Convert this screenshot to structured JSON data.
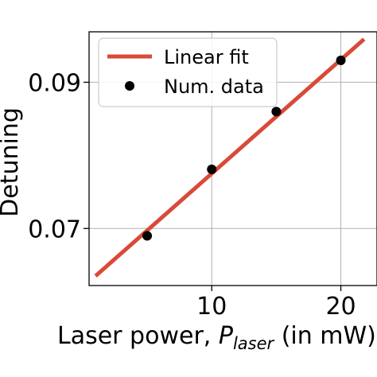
{
  "chart_data": {
    "type": "scatter",
    "xlabel_main": "Laser power, ",
    "xlabel_symbol": "P",
    "xlabel_subscript": "laser",
    "xlabel_suffix": " (in mW)",
    "ylabel": "Detuning",
    "xlim": [
      0.5,
      22.8
    ],
    "ylim": [
      0.0622,
      0.0969
    ],
    "x_ticks": [
      10,
      20
    ],
    "x_tick_labels": [
      "10",
      "20"
    ],
    "y_ticks": [
      0.07,
      0.09
    ],
    "y_tick_labels": [
      "0.07",
      "0.09"
    ],
    "grid": true,
    "legend_position": "top-left",
    "fit_line": {
      "name": "Linear fit",
      "color": "#d94a38",
      "x": [
        1.0,
        21.8
      ],
      "y": [
        0.0635,
        0.0959
      ]
    },
    "series": [
      {
        "name": "Num. data",
        "color": "#000000",
        "x": [
          5,
          10,
          15,
          20
        ],
        "y": [
          0.069,
          0.0781,
          0.086,
          0.093
        ]
      }
    ]
  }
}
